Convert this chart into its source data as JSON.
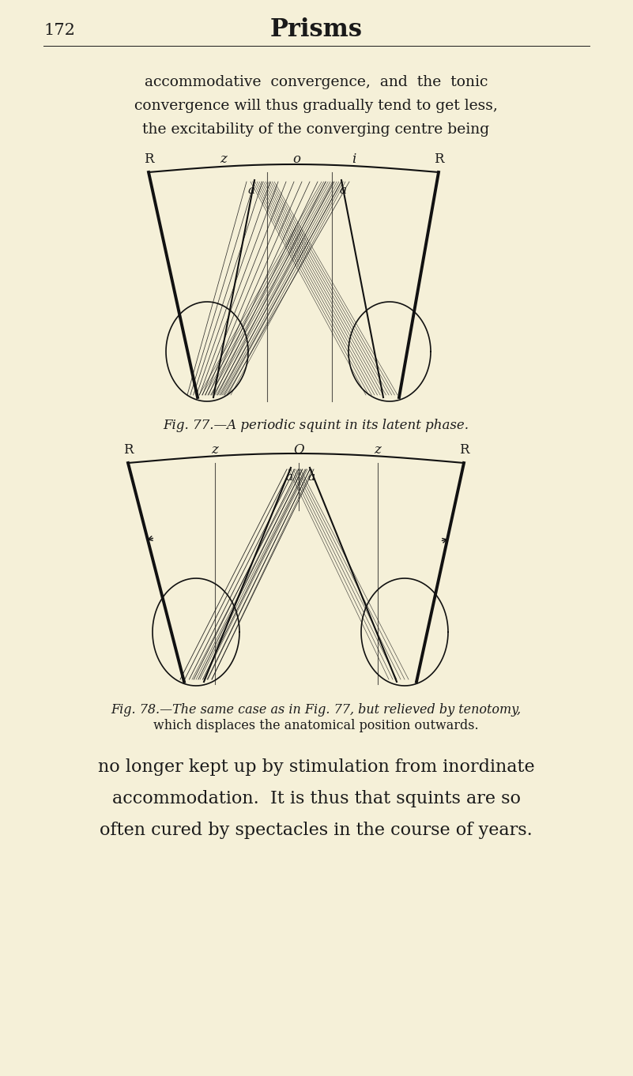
{
  "bg_color": "#f5f0d8",
  "text_color": "#1a1a1a",
  "page_number": "172",
  "page_title": "Prisms",
  "top_text_lines": [
    "accommodative  convergence,  and  the  tonic",
    "convergence will thus gradually tend to get less,",
    "the excitability of the converging centre being"
  ],
  "fig77_caption": "Fig. 77.—A periodic squint in its latent phase.",
  "fig78_caption_line1": "Fig. 78.—The same case as in Fig. 77, but relieved by tenotomy,",
  "fig78_caption_line2": "which displaces the anatomical position outwards.",
  "bottom_text_lines": [
    "no longer kept up by stimulation from inordinate",
    "accommodation.  It is thus that squints are so",
    "often cured by spectacles in the course of years."
  ],
  "line_color": "#111111"
}
